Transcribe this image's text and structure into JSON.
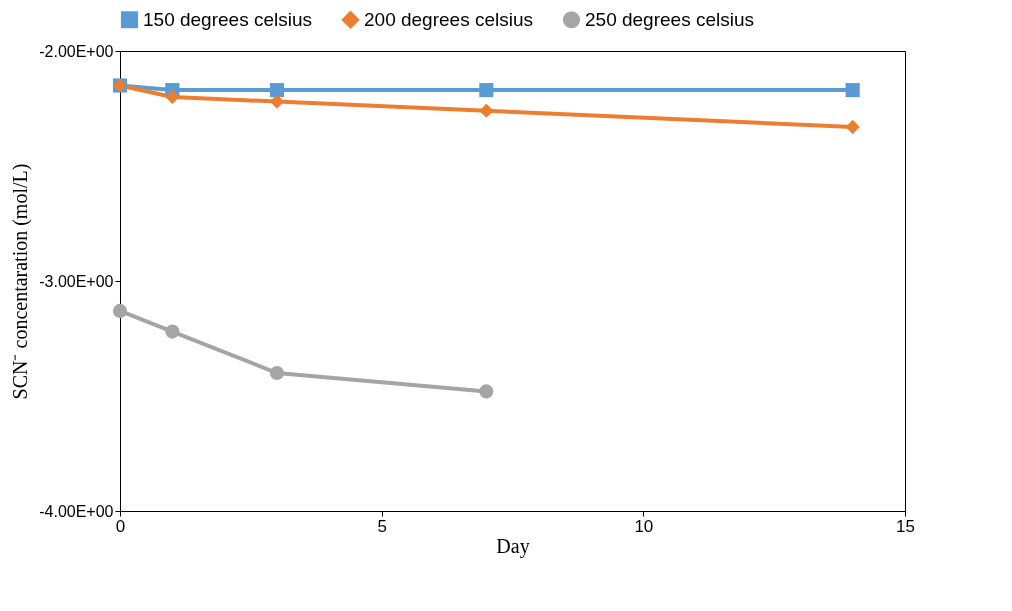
{
  "chart_data": {
    "type": "line",
    "xlabel": "Day",
    "ylabel": "SCN⁻ concentaration (mol/L)",
    "xlim": [
      0,
      15
    ],
    "xticks": [
      0,
      5,
      10,
      15
    ],
    "ylim": [
      -4,
      -2
    ],
    "yticks": [
      {
        "value": -2,
        "label": "-2.00E+00"
      },
      {
        "value": -3,
        "label": "-3.00E+00"
      },
      {
        "value": -4,
        "label": "-4.00E+00"
      }
    ],
    "grid": false,
    "legend": "top",
    "series": [
      {
        "name": "150 degrees celsius",
        "color": "#5b9bd5",
        "marker": "square",
        "x": [
          0,
          1,
          3,
          7,
          14
        ],
        "values": [
          -2.15,
          -2.17,
          -2.17,
          -2.17,
          -2.17
        ]
      },
      {
        "name": "200 degrees celsius",
        "color": "#ed7d31",
        "marker": "diamond",
        "x": [
          0,
          1,
          3,
          7,
          14
        ],
        "values": [
          -2.15,
          -2.2,
          -2.22,
          -2.26,
          -2.33
        ]
      },
      {
        "name": "250 degrees celsius",
        "color": "#a5a5a5",
        "marker": "circle",
        "x": [
          0,
          1,
          3,
          7
        ],
        "values": [
          -3.13,
          -3.22,
          -3.4,
          -3.48
        ]
      }
    ]
  }
}
